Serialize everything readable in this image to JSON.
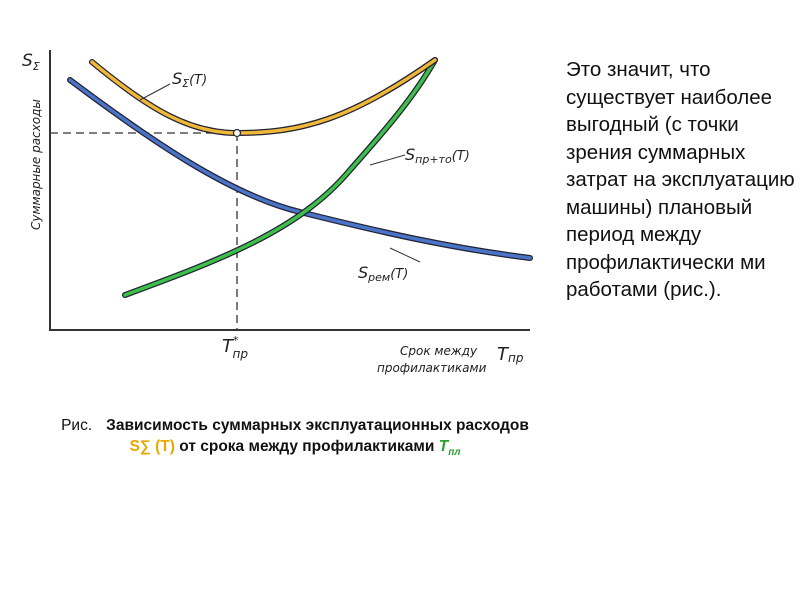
{
  "figure": {
    "y_axis_symbol": {
      "main": "S",
      "sub": "Σ"
    },
    "y_axis_title": "Суммарные расходы",
    "curve_total": {
      "main": "S",
      "sub": "Σ",
      "arg": "(T)"
    },
    "curve_prevention": {
      "main": "S",
      "sub": "пр+то",
      "arg": "(T)"
    },
    "curve_repair": {
      "main": "S",
      "sub": "рем",
      "arg": "(T)"
    },
    "x_optimum": {
      "main": "T",
      "sup": "*",
      "sub": "пр"
    },
    "x_axis_title": [
      "Срок между",
      "профилактиками"
    ],
    "x_axis_symbol": {
      "main": "T",
      "sub": "пр"
    }
  },
  "caption": {
    "prefix": "Рис.",
    "text1": "Зависимость суммарных эксплуатационных расходов ",
    "symbol": "S∑ (T)",
    "text2": " от срока между профилактиками ",
    "symbol2": {
      "main": "T",
      "sub": "пл"
    }
  },
  "paragraph": "Это значит, что существует наиболее выгодный (с точки зрения суммарных затрат на эксплуатацию машины) плановый период между профилактически ми работами (рис.)."
}
